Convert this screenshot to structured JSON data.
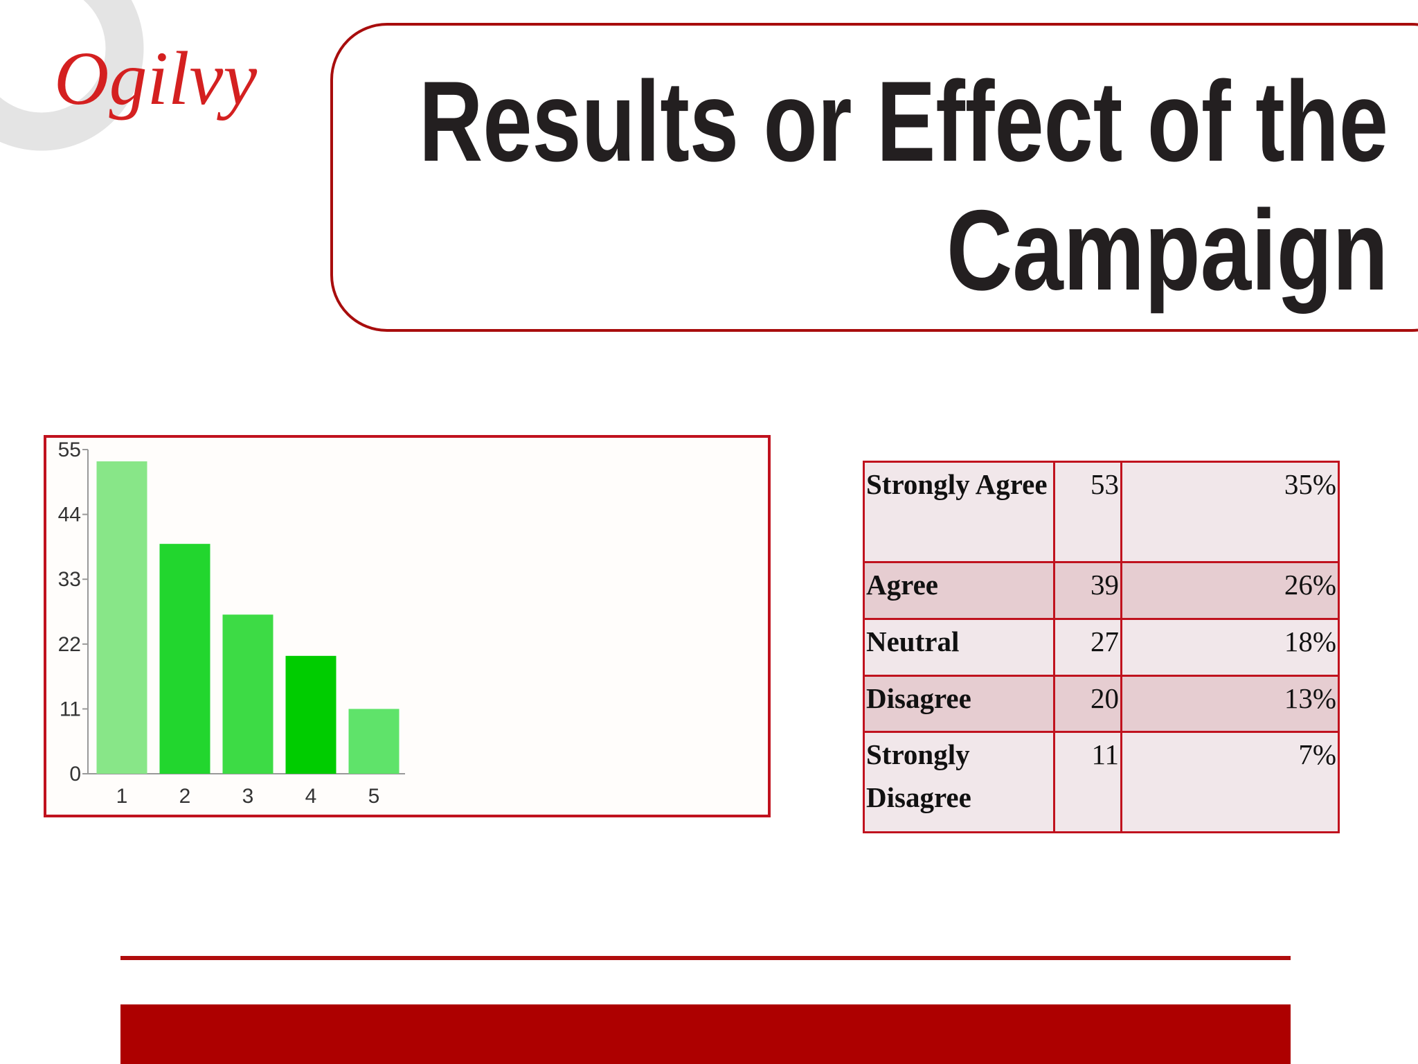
{
  "logo": "Ogilvy",
  "title": {
    "lines": [
      "Results or Effect of the",
      "Campaign"
    ]
  },
  "chart_data": {
    "type": "bar",
    "categories": [
      "1",
      "2",
      "3",
      "4",
      "5"
    ],
    "values": [
      53,
      39,
      27,
      20,
      11
    ],
    "colors": [
      "#88e688",
      "#22d62e",
      "#3ddb45",
      "#00cc00",
      "#5fe36a"
    ],
    "ylim": [
      0,
      55
    ],
    "yticks": [
      0,
      11,
      22,
      33,
      44,
      55
    ]
  },
  "table": {
    "rows": [
      [
        "Strongly Agree",
        "53",
        "35%"
      ],
      [
        "Agree",
        "39",
        "26%"
      ],
      [
        "Neutral",
        "27",
        "18%"
      ],
      [
        "Disagree",
        "20",
        "13%"
      ],
      [
        "Strongly Disagree",
        "11",
        "7%"
      ]
    ]
  }
}
